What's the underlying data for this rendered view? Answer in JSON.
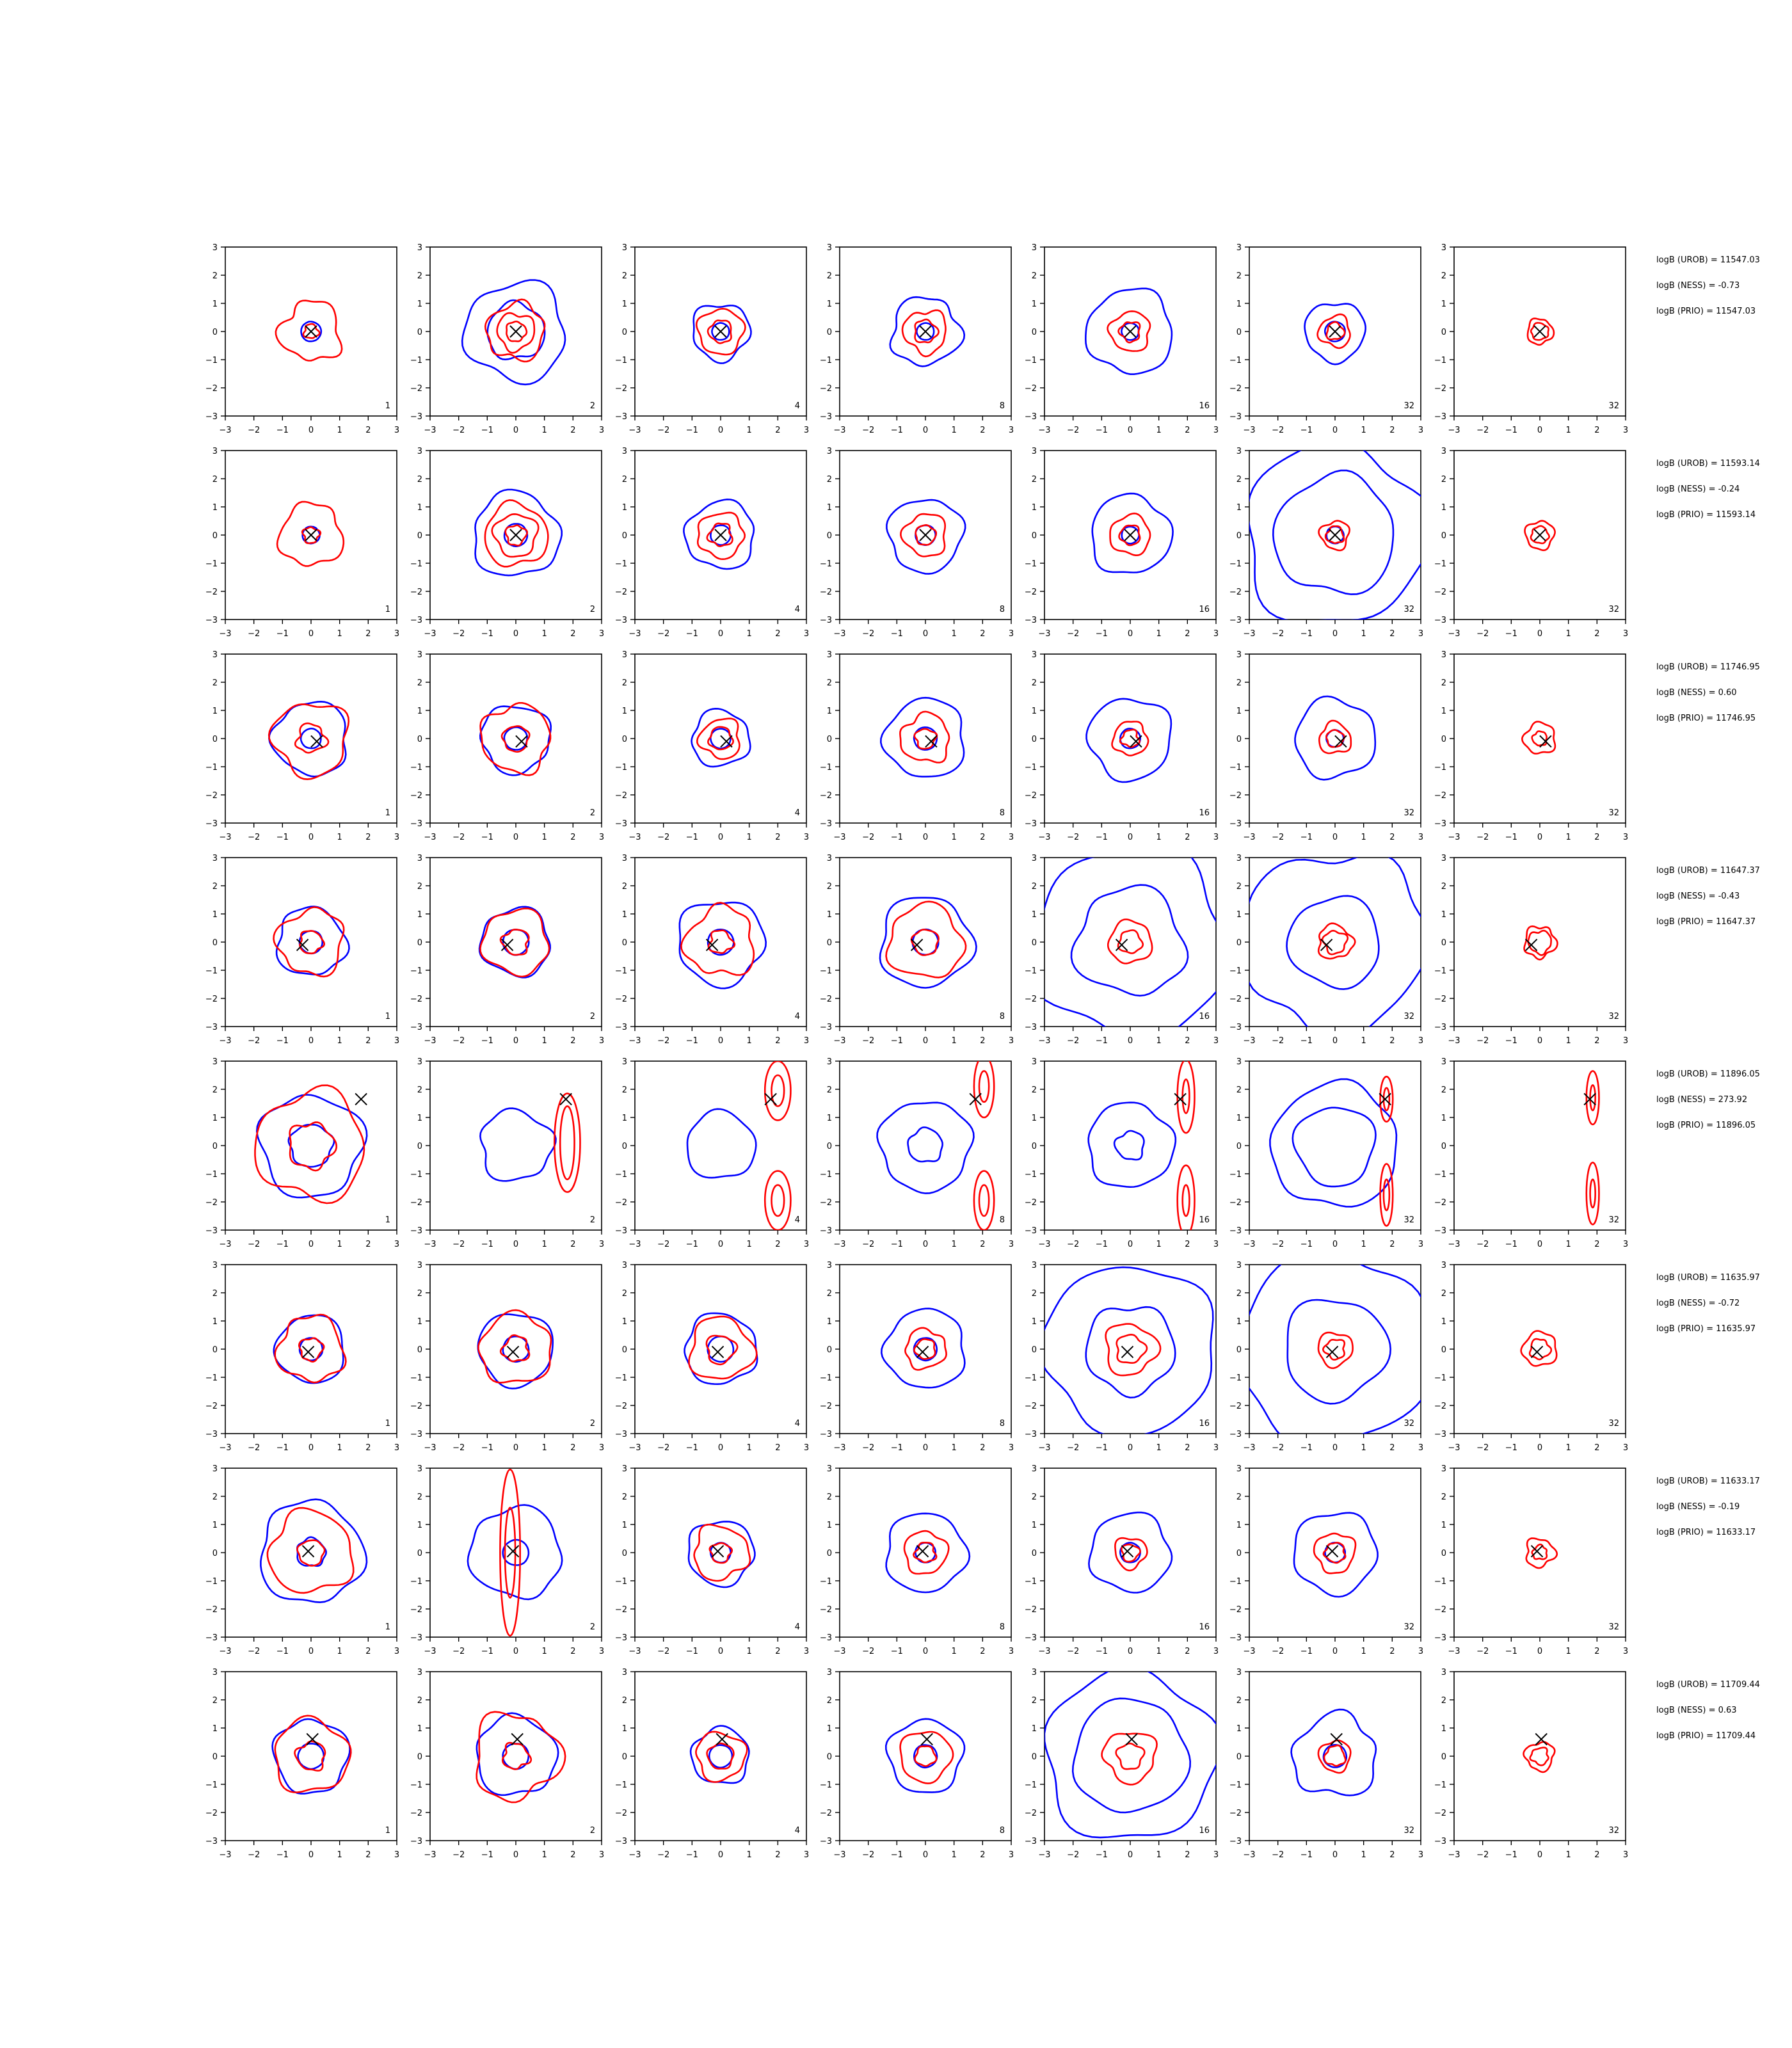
{
  "figure": {
    "axis_range": [
      -3,
      3
    ],
    "ticks": [
      -3,
      -2,
      -1,
      0,
      1,
      2,
      3
    ],
    "tick_labels": [
      "−3",
      "−2",
      "−1",
      "0",
      "1",
      "2",
      "3"
    ],
    "colors": {
      "contour_blue": "#0000ff",
      "contour_red": "#ff0000",
      "marker": "#000000"
    },
    "marker_icon": "x-marker-icon"
  },
  "chart_data": {
    "type": "contour-grid",
    "column_labels": [
      "1",
      "2",
      "4",
      "8",
      "16",
      "32",
      "32"
    ],
    "rows": [
      {
        "marker": [
          0.0,
          0.0
        ],
        "blue": [
          [
            0.35
          ],
          [
            1.0,
            1.75
          ],
          [
            0.3,
            1.0
          ],
          [
            0.3,
            1.2
          ],
          [
            0.3,
            1.5
          ],
          [
            0.35,
            1.05
          ],
          []
        ],
        "red": [
          [
            0.25,
            1.05
          ],
          [
            0.35,
            0.65,
            1.0
          ],
          [
            0.4,
            0.8
          ],
          [
            0.4,
            0.75
          ],
          [
            0.35,
            0.7
          ],
          [
            0.3,
            0.55
          ],
          [
            0.3,
            0.45
          ]
        ],
        "stats": [
          "logB (UROB) = 11547.03",
          "logB (NESS) = -0.73",
          "logB (PRIO) = 11547.03"
        ]
      },
      {
        "marker": [
          0.0,
          0.0
        ],
        "blue": [
          [
            0.3
          ],
          [
            0.4,
            1.5
          ],
          [
            0.35,
            1.2
          ],
          [
            0.35,
            1.3
          ],
          [
            0.3,
            1.4
          ],
          [
            0.3,
            2.1,
            3.2
          ],
          []
        ],
        "red": [
          [
            0.28,
            1.1
          ],
          [
            0.35,
            0.75,
            1.1
          ],
          [
            0.4,
            0.8
          ],
          [
            0.35,
            0.75
          ],
          [
            0.35,
            0.7
          ],
          [
            0.3,
            0.5
          ],
          [
            0.3,
            0.5
          ]
        ],
        "stats": [
          "logB (UROB) = 11593.14",
          "logB (NESS) = -0.24",
          "logB (PRIO) = 11593.14"
        ]
      },
      {
        "marker": [
          0.2,
          -0.1
        ],
        "blue": [
          [
            0.35,
            1.3
          ],
          [
            0.4,
            1.2
          ],
          [
            0.35,
            1.0
          ],
          [
            0.4,
            1.4
          ],
          [
            0.35,
            1.45
          ],
          [
            0.3,
            1.4
          ],
          []
        ],
        "red": [
          [
            0.5,
            1.3
          ],
          [
            0.45,
            1.2
          ],
          [
            0.4,
            0.7
          ],
          [
            0.35,
            0.85
          ],
          [
            0.3,
            0.6
          ],
          [
            0.3,
            0.55
          ],
          [
            0.25,
            0.55
          ]
        ],
        "stats": [
          "logB (UROB) = 11746.95",
          "logB (NESS) = 0.60",
          "logB (PRIO) = 11746.95"
        ]
      },
      {
        "marker": [
          -0.3,
          -0.1
        ],
        "blue": [
          [
            0.4,
            1.2
          ],
          [
            0.45,
            1.2
          ],
          [
            0.45,
            1.5
          ],
          [
            0.45,
            1.6
          ],
          [
            1.9,
            3.4
          ],
          [
            1.6,
            3.2
          ],
          []
        ],
        "red": [
          [
            0.4,
            1.15
          ],
          [
            0.45,
            1.15
          ],
          [
            0.4,
            1.2
          ],
          [
            0.45,
            1.3
          ],
          [
            0.4,
            0.75
          ],
          [
            0.4,
            0.6
          ],
          [
            0.4,
            0.55
          ]
        ],
        "stats": [
          "logB (UROB) = 11647.37",
          "logB (NESS) = -0.43",
          "logB (PRIO) = 11647.37"
        ]
      },
      {
        "marker": [
          1.75,
          1.65
        ],
        "blue": [
          [
            0.75,
            1.8
          ],
          [
            1.25
          ],
          [
            1.2
          ],
          [
            0.6,
            1.6
          ],
          [
            0.5,
            1.5
          ],
          [
            1.4,
            2.2
          ],
          []
        ],
        "red": [
          [
            0.8,
            1.9
          ],
          [],
          [],
          [],
          [],
          [],
          []
        ],
        "stats": [
          "logB (UROB) = 11896.05",
          "logB (NESS) = 273.92",
          "logB (PRIO) = 11896.05"
        ]
      },
      {
        "marker": [
          -0.1,
          -0.1
        ],
        "blue": [
          [
            0.4,
            1.2
          ],
          [
            0.45,
            1.3
          ],
          [
            0.45,
            1.25
          ],
          [
            0.4,
            1.4
          ],
          [
            1.55,
            3.0
          ],
          [
            1.8,
            3.4
          ],
          []
        ],
        "red": [
          [
            0.4,
            1.15
          ],
          [
            0.45,
            1.25
          ],
          [
            0.5,
            1.1
          ],
          [
            0.35,
            0.7
          ],
          [
            0.5,
            0.9
          ],
          [
            0.35,
            0.6
          ],
          [
            0.35,
            0.6
          ]
        ],
        "stats": [
          "logB (UROB) = 11635.97",
          "logB (NESS) = -0.72",
          "logB (PRIO) = 11635.97"
        ]
      },
      {
        "marker": [
          -0.1,
          0.05
        ],
        "blue": [
          [
            0.5,
            1.8
          ],
          [
            0.45,
            1.6
          ],
          [
            0.35,
            1.15
          ],
          [
            0.35,
            1.4
          ],
          [
            0.35,
            1.4
          ],
          [
            0.35,
            1.45
          ],
          []
        ],
        "red": [
          [
            0.45,
            1.45
          ],
          [],
          [
            0.35,
            0.95
          ],
          [
            0.35,
            0.75
          ],
          [
            0.3,
            0.55
          ],
          [
            0.35,
            0.7
          ],
          [
            0.25,
            0.5
          ]
        ],
        "stats": [
          "logB (UROB) = 11633.17",
          "logB (NESS) = -0.19",
          "logB (PRIO) = 11633.17"
        ]
      },
      {
        "marker": [
          0.05,
          0.6
        ],
        "blue": [
          [
            0.45,
            1.3
          ],
          [
            0.45,
            1.4
          ],
          [
            0.4,
            1.0
          ],
          [
            0.4,
            1.3
          ],
          [
            2.0,
            3.0
          ],
          [
            0.4,
            1.45
          ],
          []
        ],
        "red": [
          [
            0.5,
            1.3
          ],
          [
            0.45,
            1.5
          ],
          [
            0.45,
            0.85
          ],
          [
            0.35,
            0.9
          ],
          [
            0.45,
            0.9
          ],
          [
            0.35,
            0.55
          ],
          [
            0.3,
            0.5
          ]
        ],
        "stats": [
          "logB (UROB) = 11709.44",
          "logB (NESS) = 0.63",
          "logB (PRIO) = 11709.44"
        ]
      }
    ],
    "row5_elongated_red": [
      [],
      [
        {
          "cx": 1.8,
          "cy": 0.1,
          "rx": 0.45,
          "ry": 1.75
        },
        {
          "cx": 1.8,
          "cy": 0.1,
          "rx": 0.25,
          "ry": 1.3
        }
      ],
      [
        {
          "cx": 2.0,
          "cy": 1.95,
          "rx": 0.45,
          "ry": 1.05
        },
        {
          "cx": 2.0,
          "cy": 1.95,
          "rx": 0.22,
          "ry": 0.55
        },
        {
          "cx": 2.0,
          "cy": -1.95,
          "rx": 0.45,
          "ry": 1.05
        },
        {
          "cx": 2.0,
          "cy": -1.95,
          "rx": 0.22,
          "ry": 0.55
        }
      ],
      [
        {
          "cx": 2.05,
          "cy": 2.1,
          "rx": 0.35,
          "ry": 1.1
        },
        {
          "cx": 2.05,
          "cy": 2.1,
          "rx": 0.17,
          "ry": 0.55
        },
        {
          "cx": 2.05,
          "cy": -1.95,
          "rx": 0.35,
          "ry": 1.05
        },
        {
          "cx": 2.05,
          "cy": -1.95,
          "rx": 0.17,
          "ry": 0.55
        }
      ],
      [
        {
          "cx": 1.95,
          "cy": 1.75,
          "rx": 0.3,
          "ry": 1.3
        },
        {
          "cx": 1.95,
          "cy": 1.75,
          "rx": 0.12,
          "ry": 0.6
        },
        {
          "cx": 1.95,
          "cy": -1.95,
          "rx": 0.3,
          "ry": 1.25
        },
        {
          "cx": 1.95,
          "cy": -1.95,
          "rx": 0.12,
          "ry": 0.55
        }
      ],
      [
        {
          "cx": 1.8,
          "cy": 1.65,
          "rx": 0.22,
          "ry": 0.8
        },
        {
          "cx": 1.8,
          "cy": 1.65,
          "rx": 0.1,
          "ry": 0.4
        },
        {
          "cx": 1.8,
          "cy": -1.75,
          "rx": 0.22,
          "ry": 1.1
        },
        {
          "cx": 1.8,
          "cy": -1.75,
          "rx": 0.1,
          "ry": 0.55
        }
      ],
      [
        {
          "cx": 1.85,
          "cy": 1.7,
          "rx": 0.22,
          "ry": 0.95
        },
        {
          "cx": 1.85,
          "cy": 1.7,
          "rx": 0.09,
          "ry": 0.45
        },
        {
          "cx": 1.85,
          "cy": -1.7,
          "rx": 0.22,
          "ry": 1.1
        },
        {
          "cx": 1.85,
          "cy": -1.7,
          "rx": 0.09,
          "ry": 0.5
        }
      ]
    ],
    "row7_col2_red": [
      {
        "cx": -0.2,
        "cy": 0.0,
        "rx": 0.35,
        "ry": 2.95
      },
      {
        "cx": -0.2,
        "cy": 0.0,
        "rx": 0.18,
        "ry": 1.6
      }
    ]
  }
}
